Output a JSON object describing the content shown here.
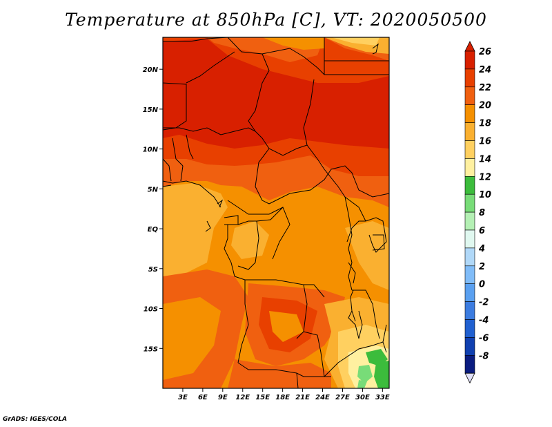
{
  "title": "Temperature at 850hPa [C], VT: 2020050500",
  "credit": "GrADS: IGES/COLA",
  "map": {
    "region": "Central Africa",
    "lat_range": [
      -20,
      24
    ],
    "lon_range": [
      0,
      34
    ],
    "lat_ticks": [
      {
        "value": 20,
        "label": "20N"
      },
      {
        "value": 15,
        "label": "15N"
      },
      {
        "value": 10,
        "label": "10N"
      },
      {
        "value": 5,
        "label": "5N"
      },
      {
        "value": 0,
        "label": "EQ"
      },
      {
        "value": -5,
        "label": "5S"
      },
      {
        "value": -10,
        "label": "10S"
      },
      {
        "value": -15,
        "label": "15S"
      }
    ],
    "lon_ticks": [
      {
        "value": 3,
        "label": "3E"
      },
      {
        "value": 6,
        "label": "6E"
      },
      {
        "value": 9,
        "label": "9E"
      },
      {
        "value": 12,
        "label": "12E"
      },
      {
        "value": 15,
        "label": "15E"
      },
      {
        "value": 18,
        "label": "18E"
      },
      {
        "value": 21,
        "label": "21E"
      },
      {
        "value": 24,
        "label": "24E"
      },
      {
        "value": 27,
        "label": "27E"
      },
      {
        "value": 30,
        "label": "30E"
      },
      {
        "value": 33,
        "label": "33E"
      }
    ]
  },
  "colorbar": {
    "levels": [
      {
        "label": "26",
        "color": "#d82000"
      },
      {
        "label": "24",
        "color": "#e84000"
      },
      {
        "label": "22",
        "color": "#f06010"
      },
      {
        "label": "20",
        "color": "#f59000"
      },
      {
        "label": "18",
        "color": "#fab030"
      },
      {
        "label": "16",
        "color": "#ffd060"
      },
      {
        "label": "14",
        "color": "#fff0a0"
      },
      {
        "label": "12",
        "color": "#3cbc3c"
      },
      {
        "label": "10",
        "color": "#78dc78"
      },
      {
        "label": "8",
        "color": "#b4f0b4"
      },
      {
        "label": "6",
        "color": "#e0f8f0"
      },
      {
        "label": "4",
        "color": "#b0d8f8"
      },
      {
        "label": "2",
        "color": "#80bcf8"
      },
      {
        "label": "0",
        "color": "#5aa0f0"
      },
      {
        "label": "-2",
        "color": "#3c7ce0"
      },
      {
        "label": "-4",
        "color": "#2060d0"
      },
      {
        "label": "-6",
        "color": "#1040b0"
      },
      {
        "label": "-8",
        "color": "#0a1c80"
      }
    ],
    "top_cap_color": "#d82000",
    "bottom_cap_color": "#e0e0f8"
  }
}
